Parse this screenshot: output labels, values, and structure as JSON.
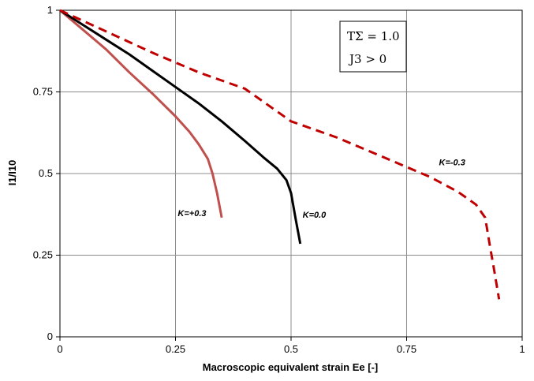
{
  "chart_data": {
    "type": "line",
    "title": "",
    "xlabel": "Macroscopic equivalent strain Ee [-]",
    "ylabel": "I1/I10",
    "xlim": [
      0,
      1
    ],
    "ylim": [
      0,
      1
    ],
    "grid": true,
    "xticks": [
      {
        "value": 0,
        "label": "0"
      },
      {
        "value": 0.25,
        "label": "0.25"
      },
      {
        "value": 0.5,
        "label": "0.5"
      },
      {
        "value": 0.75,
        "label": "0.75"
      },
      {
        "value": 1,
        "label": "1"
      }
    ],
    "yticks": [
      {
        "value": 0,
        "label": "0"
      },
      {
        "value": 0.25,
        "label": "0.25"
      },
      {
        "value": 0.5,
        "label": "0.5"
      },
      {
        "value": 0.75,
        "label": "0.75"
      },
      {
        "value": 1,
        "label": "1"
      }
    ],
    "annotation_box": {
      "line1": "TΣ = 1.0",
      "line2": "J3 > 0"
    },
    "series": [
      {
        "name": "K=+0.3",
        "color": "#c0504d",
        "dash": "solid",
        "x": [
          0,
          0.05,
          0.1,
          0.15,
          0.2,
          0.25,
          0.28,
          0.3,
          0.32,
          0.33,
          0.34,
          0.35
        ],
        "y": [
          1,
          0.94,
          0.88,
          0.81,
          0.745,
          0.675,
          0.628,
          0.59,
          0.545,
          0.5,
          0.44,
          0.365
        ]
      },
      {
        "name": "K=0.0",
        "color": "#000000",
        "dash": "solid",
        "x": [
          0,
          0.05,
          0.1,
          0.15,
          0.2,
          0.25,
          0.3,
          0.35,
          0.4,
          0.44,
          0.47,
          0.49,
          0.5,
          0.51,
          0.52
        ],
        "y": [
          1,
          0.955,
          0.91,
          0.865,
          0.815,
          0.765,
          0.715,
          0.66,
          0.6,
          0.55,
          0.515,
          0.48,
          0.44,
          0.36,
          0.285
        ]
      },
      {
        "name": "K=-0.3",
        "color": "#c00000",
        "dash": "dashed",
        "x": [
          0,
          0.1,
          0.2,
          0.3,
          0.4,
          0.5,
          0.6,
          0.7,
          0.8,
          0.86,
          0.9,
          0.92,
          0.93,
          0.94,
          0.95
        ],
        "y": [
          1,
          0.935,
          0.87,
          0.81,
          0.76,
          0.66,
          0.61,
          0.55,
          0.49,
          0.445,
          0.405,
          0.365,
          0.28,
          0.2,
          0.115
        ]
      }
    ]
  }
}
